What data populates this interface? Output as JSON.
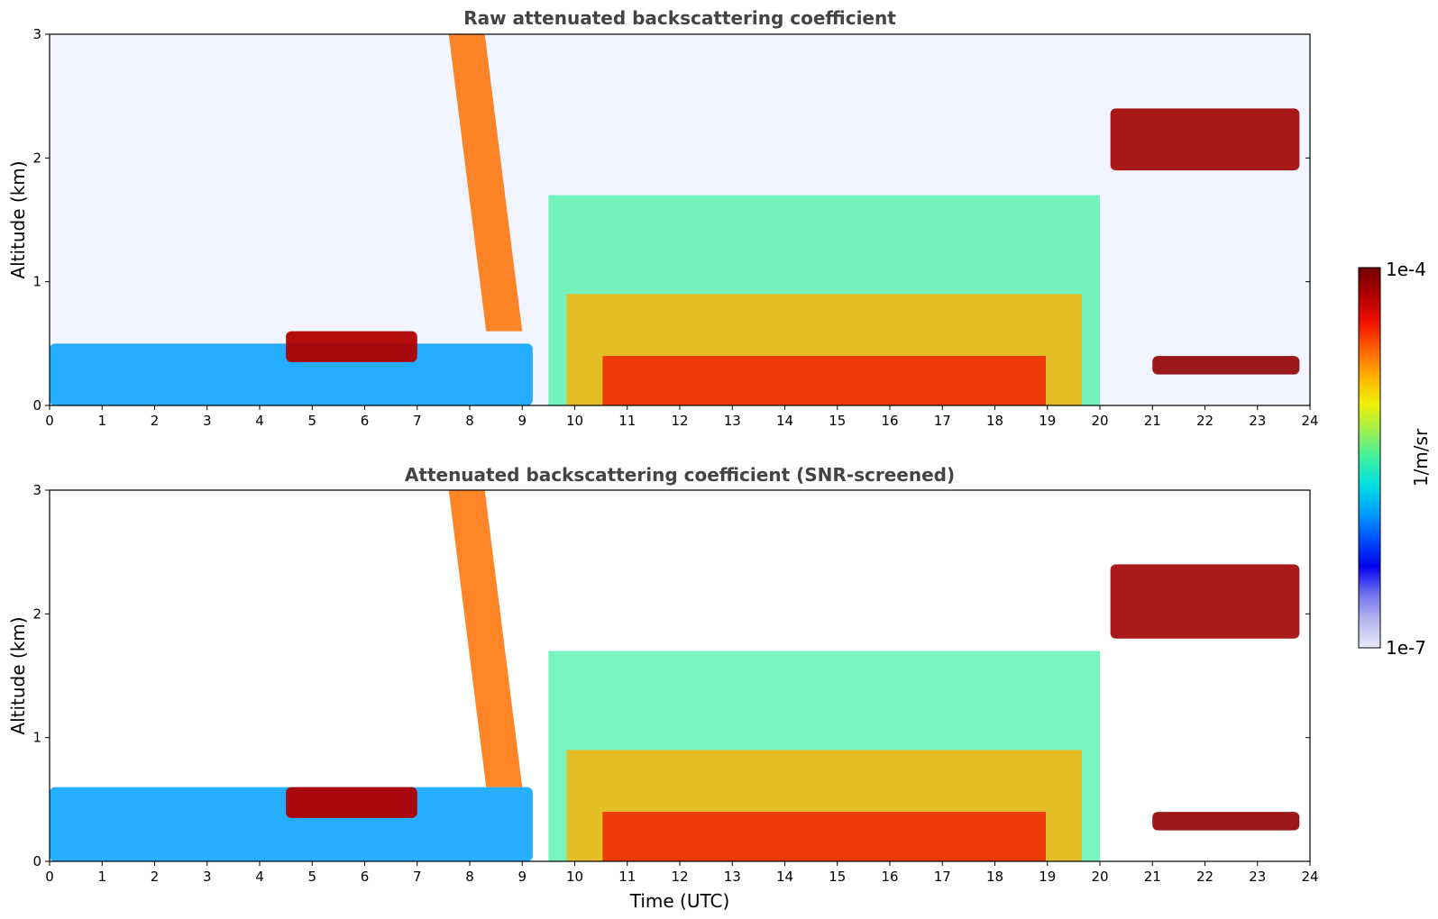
{
  "chart_data": [
    {
      "type": "heatmap",
      "title": "Raw attenuated backscattering coefficient",
      "xlabel": "",
      "ylabel": "Altitude (km)",
      "xlim": [
        0,
        24
      ],
      "ylim": [
        0,
        3
      ],
      "xticks": [
        "0",
        "1",
        "2",
        "3",
        "4",
        "5",
        "6",
        "7",
        "8",
        "9",
        "10",
        "11",
        "12",
        "13",
        "14",
        "15",
        "16",
        "17",
        "18",
        "19",
        "20",
        "21",
        "22",
        "23",
        "24"
      ],
      "yticks": [
        "0",
        "1",
        "2",
        "3"
      ],
      "features": [
        {
          "kind": "boundary_layer",
          "x": [
            0,
            9.2
          ],
          "y": [
            0,
            0.5
          ]
        },
        {
          "kind": "aerosol_layer",
          "x": [
            4.5,
            7.0
          ],
          "y": [
            0.35,
            0.6
          ]
        },
        {
          "kind": "rain_streak",
          "x": [
            7.6,
            9.0
          ],
          "y": [
            0.6,
            3.0
          ]
        },
        {
          "kind": "mixed_layer",
          "x": [
            9.5,
            20.0
          ],
          "y": [
            0,
            1.7
          ]
        },
        {
          "kind": "cloud_layer",
          "x": [
            20.2,
            23.8
          ],
          "y": [
            1.9,
            2.4
          ]
        },
        {
          "kind": "cloud_base",
          "x": [
            21.0,
            23.8
          ],
          "y": [
            0.25,
            0.4
          ]
        }
      ]
    },
    {
      "type": "heatmap",
      "title": "Attenuated backscattering coefficient (SNR-screened)",
      "xlabel": "Time (UTC)",
      "ylabel": "Altitude (km)",
      "xlim": [
        0,
        24
      ],
      "ylim": [
        0,
        3
      ],
      "xticks": [
        "0",
        "1",
        "2",
        "3",
        "4",
        "5",
        "6",
        "7",
        "8",
        "9",
        "10",
        "11",
        "12",
        "13",
        "14",
        "15",
        "16",
        "17",
        "18",
        "19",
        "20",
        "21",
        "22",
        "23",
        "24"
      ],
      "yticks": [
        "0",
        "1",
        "2",
        "3"
      ],
      "features": [
        {
          "kind": "boundary_layer",
          "x": [
            0,
            9.2
          ],
          "y": [
            0,
            0.6
          ]
        },
        {
          "kind": "aerosol_layer",
          "x": [
            4.5,
            7.0
          ],
          "y": [
            0.35,
            0.6
          ]
        },
        {
          "kind": "rain_streak",
          "x": [
            7.6,
            9.0
          ],
          "y": [
            0.6,
            3.0
          ]
        },
        {
          "kind": "mixed_layer",
          "x": [
            9.5,
            20.0
          ],
          "y": [
            0,
            1.7
          ]
        },
        {
          "kind": "cloud_layer",
          "x": [
            20.2,
            23.8
          ],
          "y": [
            1.8,
            2.4
          ]
        },
        {
          "kind": "cloud_base",
          "x": [
            21.0,
            23.8
          ],
          "y": [
            0.25,
            0.4
          ]
        }
      ]
    }
  ],
  "colorbar": {
    "label": "1/m/sr",
    "max_label": "1e-4",
    "min_label": "1e-7",
    "colors": [
      "#e8e8f8",
      "#b8b8f0",
      "#7070f0",
      "#0000f0",
      "#0050ff",
      "#00a0ff",
      "#00e0e0",
      "#40f0a0",
      "#a0f050",
      "#f0f000",
      "#ffb000",
      "#ff6000",
      "#f01000",
      "#b00000",
      "#700000"
    ]
  }
}
